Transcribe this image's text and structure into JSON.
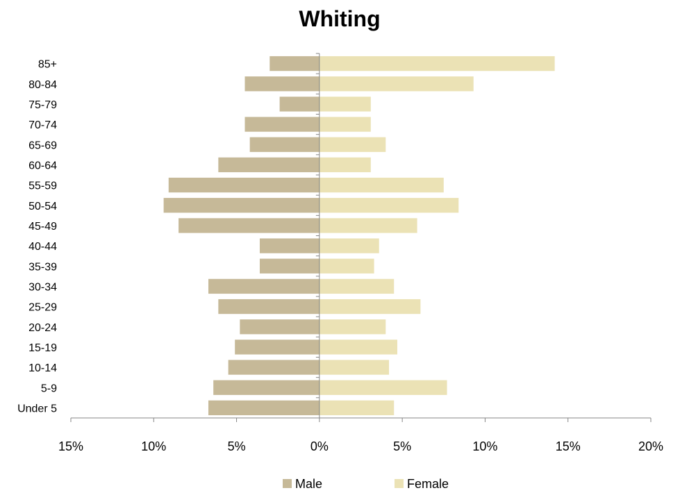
{
  "chart_data": {
    "type": "bar",
    "orientation": "horizontal",
    "title": "Whiting",
    "categories": [
      "85+",
      "80-84",
      "75-79",
      "70-74",
      "65-69",
      "60-64",
      "55-59",
      "50-54",
      "45-49",
      "40-44",
      "35-39",
      "30-34",
      "25-29",
      "20-24",
      "15-19",
      "10-14",
      "5-9",
      "Under 5"
    ],
    "series": [
      {
        "name": "Male",
        "color": "#c6b998",
        "values": [
          3.0,
          4.5,
          2.4,
          4.5,
          4.2,
          6.1,
          9.1,
          9.4,
          8.5,
          3.6,
          3.6,
          6.7,
          6.1,
          4.8,
          5.1,
          5.5,
          6.4,
          6.7
        ]
      },
      {
        "name": "Female",
        "color": "#ebe2b5",
        "values": [
          14.2,
          9.3,
          3.1,
          3.1,
          4.0,
          3.1,
          7.5,
          8.4,
          5.9,
          3.6,
          3.3,
          4.5,
          6.1,
          4.0,
          4.7,
          4.2,
          7.7,
          4.5
        ]
      }
    ],
    "xlim": [
      -15,
      20
    ],
    "x_ticks": [
      -15,
      -10,
      -5,
      0,
      5,
      10,
      15,
      20
    ],
    "x_tick_labels": [
      "15%",
      "10%",
      "5%",
      "0%",
      "5%",
      "10%",
      "15%",
      "20%"
    ],
    "xlabel": "",
    "ylabel": "",
    "grid": false,
    "legend_position": "bottom",
    "axis_color": "#868686"
  }
}
